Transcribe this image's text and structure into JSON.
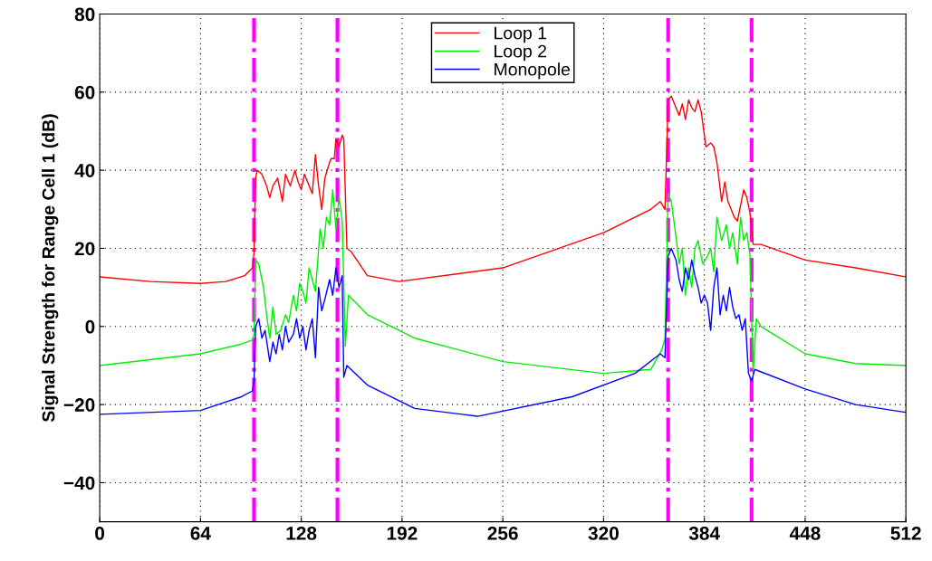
{
  "chart_data": {
    "type": "line",
    "ylabel": "Signal Strength for Range Cell 1 (dB)",
    "xlim": [
      0,
      512
    ],
    "xticks": [
      0,
      64,
      128,
      192,
      256,
      320,
      384,
      448,
      512
    ],
    "ylim": [
      -50,
      80
    ],
    "yticks": [
      -40,
      -20,
      0,
      20,
      40,
      60,
      80
    ],
    "grid": true,
    "legend": "top",
    "line_style": "solid",
    "marker": "none",
    "ref_lines": [
      {
        "axis": "x",
        "value": 98,
        "color": "#ff00ff",
        "line_style": "dashdot"
      },
      {
        "axis": "x",
        "value": 151,
        "color": "#ff00ff",
        "line_style": "dashdot"
      },
      {
        "axis": "x",
        "value": 361,
        "color": "#ff00ff",
        "line_style": "dashdot"
      },
      {
        "axis": "x",
        "value": 414,
        "color": "#ff00ff",
        "line_style": "dashdot"
      }
    ],
    "series": [
      {
        "name": "Loop 1",
        "color": "#ff0000",
        "x": [
          0,
          32,
          64,
          80,
          92,
          97,
          98,
          99,
          100,
          103,
          106,
          108,
          110,
          113,
          116,
          118,
          121,
          124,
          126,
          128,
          130,
          132,
          135,
          137,
          139,
          141,
          143,
          146,
          147,
          149,
          150,
          152,
          154,
          155,
          157,
          160,
          170,
          190,
          256,
          320,
          350,
          356,
          359,
          361,
          363,
          366,
          368,
          370,
          372,
          374,
          376,
          378,
          380,
          382,
          385,
          388,
          390,
          392,
          395,
          397,
          399,
          401,
          403,
          405,
          407,
          409,
          411,
          413,
          415,
          420,
          448,
          480,
          512
        ],
        "values": [
          12.7,
          11.5,
          11,
          11.5,
          13,
          15,
          19,
          38,
          40,
          39,
          36,
          33,
          36,
          38,
          32,
          39,
          36,
          40,
          37,
          35,
          39,
          37,
          34,
          44,
          36,
          30,
          38,
          42,
          43,
          43,
          48,
          46,
          49,
          48,
          20,
          19,
          13,
          11.5,
          15,
          24,
          30,
          32,
          30,
          58,
          59,
          56,
          54,
          57,
          53,
          58,
          56,
          55,
          58,
          55,
          46,
          47,
          46,
          42,
          32,
          37,
          32,
          30,
          28,
          27,
          31,
          35,
          33,
          29,
          21,
          21,
          17,
          15,
          12.7
        ]
      },
      {
        "name": "Loop 2",
        "color": "#00ee00",
        "x": [
          0,
          64,
          90,
          97,
          98,
          99,
          101,
          104,
          106,
          108,
          110,
          112,
          115,
          118,
          120,
          123,
          125,
          127,
          129,
          131,
          133,
          135,
          137,
          140,
          142,
          144,
          146,
          148,
          150,
          152,
          154,
          156,
          158,
          170,
          200,
          256,
          320,
          350,
          357,
          359,
          361,
          363,
          366,
          368,
          370,
          372,
          374,
          376,
          378,
          380,
          383,
          386,
          388,
          390,
          392,
          395,
          398,
          400,
          402,
          405,
          407,
          409,
          411,
          413,
          415,
          417,
          420,
          448,
          480,
          512
        ],
        "values": [
          -10,
          -7,
          -4.5,
          -3.5,
          -2,
          17,
          16,
          10,
          3,
          -3,
          5,
          -2,
          -1,
          3,
          1,
          8,
          4,
          11,
          9,
          6,
          15,
          12,
          9,
          25,
          20,
          28,
          26,
          35,
          25,
          33,
          27,
          -5,
          8,
          3,
          -3,
          -9,
          -12,
          -11,
          -6,
          -3,
          34,
          32,
          23,
          16,
          20,
          8,
          15,
          10,
          20,
          22,
          16,
          18,
          20,
          14,
          28,
          22,
          26,
          20,
          24,
          16,
          28,
          22,
          24,
          18,
          -12,
          2,
          0,
          -7,
          -9.5,
          -10
        ]
      },
      {
        "name": "Monopole",
        "color": "#0000ff",
        "x": [
          0,
          64,
          90,
          97,
          98,
          99,
          101,
          103,
          105,
          108,
          110,
          112,
          114,
          116,
          118,
          120,
          123,
          125,
          127,
          129,
          131,
          133,
          135,
          137,
          139,
          141,
          143,
          146,
          148,
          150,
          152,
          154,
          155,
          157,
          170,
          200,
          240,
          300,
          340,
          356,
          359,
          361,
          363,
          366,
          368,
          370,
          372,
          374,
          376,
          378,
          380,
          382,
          384,
          386,
          388,
          390,
          392,
          394,
          396,
          398,
          400,
          402,
          404,
          406,
          408,
          410,
          412,
          414,
          416,
          448,
          480,
          512
        ],
        "values": [
          -22.5,
          -21.5,
          -18,
          -16.5,
          -14,
          0,
          2,
          -3,
          -1,
          -9,
          -4,
          -7,
          -2,
          -6,
          0,
          -4,
          -2,
          2,
          -3,
          0,
          -6,
          -1,
          2,
          -8,
          10,
          4,
          7,
          12,
          8,
          15,
          10,
          13,
          -13,
          -10,
          -15,
          -21,
          -23,
          -18,
          -12,
          -7,
          -8,
          18,
          20,
          17,
          12,
          9,
          15,
          12,
          17,
          13,
          10,
          6,
          8,
          6,
          -1,
          10,
          15,
          3,
          8,
          4,
          10,
          5,
          2,
          3,
          -1,
          2,
          -12,
          -14,
          -11,
          -16,
          -20,
          -22
        ]
      }
    ]
  }
}
